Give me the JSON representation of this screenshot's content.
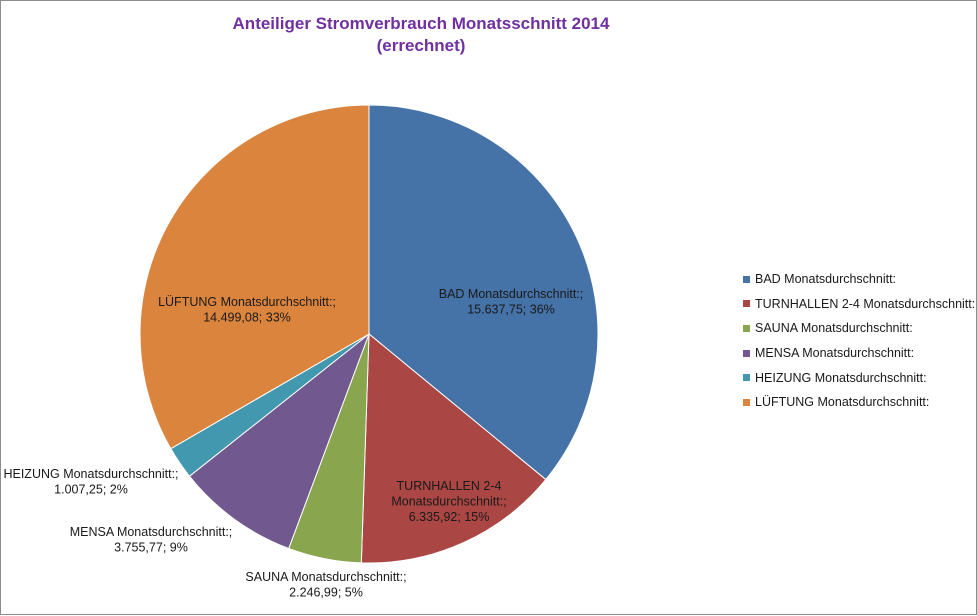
{
  "chart_data": {
    "type": "pie",
    "title_line1": "Anteiliger Stromverbrauch Monatsschnitt 2014",
    "title_line2": "(errechnet)",
    "legend_position": "right",
    "slices": [
      {
        "name": "BAD Monatsdurchschnitt:",
        "label_line1": "BAD Monatsdurchschnitt:;",
        "label_line2": "",
        "value": 15637.75,
        "value_text": "15.637,75; 36%",
        "percent": 36,
        "color": "#4572a7"
      },
      {
        "name": "TURNHALLEN 2-4 Monatsdurchschnitt:",
        "label_line1": "TURNHALLEN 2-4",
        "label_line2": "Monatsdurchschnitt:;",
        "value": 6335.92,
        "value_text": "6.335,92; 15%",
        "percent": 15,
        "color": "#aa4643"
      },
      {
        "name": "SAUNA Monatsdurchschnitt:",
        "label_line1": "SAUNA Monatsdurchschnitt:;",
        "label_line2": "",
        "value": 2246.99,
        "value_text": "2.246,99; 5%",
        "percent": 5,
        "color": "#89a54e"
      },
      {
        "name": "MENSA Monatsdurchschnitt:",
        "label_line1": "MENSA Monatsdurchschnitt:;",
        "label_line2": "",
        "value": 3755.77,
        "value_text": "3.755,77; 9%",
        "percent": 9,
        "color": "#71588f"
      },
      {
        "name": "HEIZUNG Monatsdurchschnitt:",
        "label_line1": "HEIZUNG Monatsdurchschnitt:;",
        "label_line2": "",
        "value": 1007.25,
        "value_text": "1.007,25; 2%",
        "percent": 2,
        "color": "#4198af"
      },
      {
        "name": "LÜFTUNG Monatsdurchschnitt:",
        "label_line1": "LÜFTUNG Monatsdurchschnitt:;",
        "label_line2": "",
        "value": 14499.08,
        "value_text": "14.499,08; 33%",
        "percent": 33,
        "color": "#db843d"
      }
    ]
  }
}
